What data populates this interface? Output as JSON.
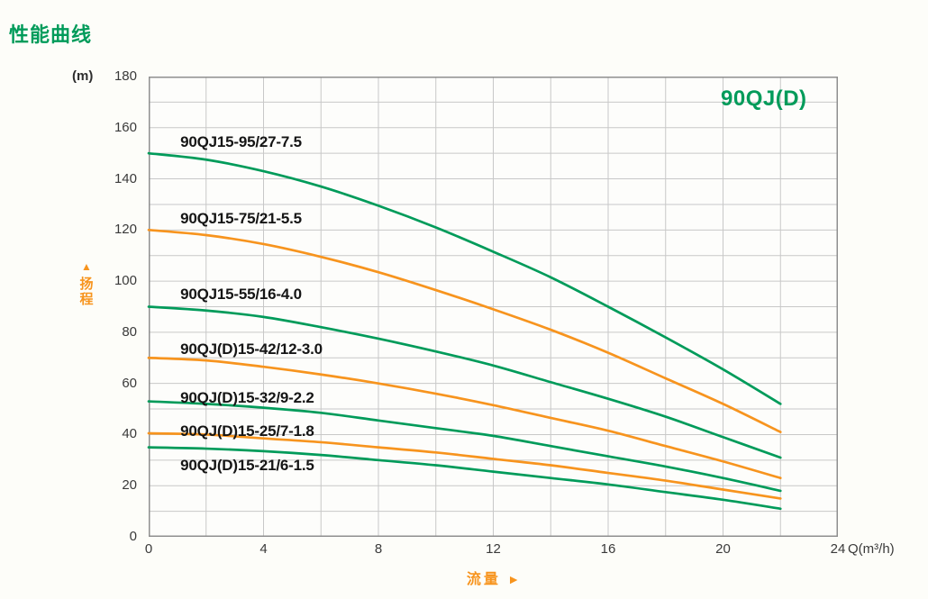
{
  "page": {
    "title": "性能曲线"
  },
  "colors": {
    "title_green": "#009B5A",
    "curve_green": "#009B5A",
    "curve_orange": "#F7941E",
    "grid": "#c8c8c8",
    "border": "#8f8f8f",
    "tick_text": "#3a3a3a"
  },
  "icons": {
    "up_triangle": "▲",
    "right_triangle": "►"
  },
  "chart_data": {
    "type": "line",
    "title": "性能曲线",
    "family_label": "90QJ(D)",
    "xlabel": "流量",
    "ylabel": "扬程",
    "x_unit": "Q(m³/h)",
    "y_unit": "(m)",
    "xlim": [
      0,
      24
    ],
    "ylim": [
      0,
      180
    ],
    "x_ticks": [
      0,
      4,
      8,
      12,
      16,
      20,
      24
    ],
    "y_ticks": [
      180,
      160,
      140,
      120,
      100,
      80,
      60,
      40,
      20,
      0
    ],
    "grid": {
      "x_minor_step": 2,
      "y_minor_step": 10,
      "on": true
    },
    "legend_position": "labels-on-curves",
    "x": [
      0,
      2,
      4,
      6,
      8,
      10,
      12,
      14,
      16,
      18,
      20,
      22
    ],
    "series": [
      {
        "name": "90QJ15-95/27-7.5",
        "color": "#009B5A",
        "values": [
          150,
          147.5,
          143,
          137,
          129.5,
          121,
          111.5,
          101.5,
          90,
          78,
          65.5,
          52
        ],
        "label_anchor": {
          "q": 1.1,
          "h": 154
        }
      },
      {
        "name": "90QJ15-75/21-5.5",
        "color": "#F7941E",
        "values": [
          120,
          118,
          114.5,
          109.5,
          103.5,
          96.5,
          89,
          81,
          72,
          62,
          52,
          41
        ],
        "label_anchor": {
          "q": 1.1,
          "h": 124
        }
      },
      {
        "name": "90QJ15-55/16-4.0",
        "color": "#009B5A",
        "values": [
          90,
          88.5,
          86,
          82,
          77.5,
          72.5,
          67,
          60.5,
          54,
          47,
          39,
          31
        ],
        "label_anchor": {
          "q": 1.1,
          "h": 94.5
        }
      },
      {
        "name": "90QJ(D)15-42/12-3.0",
        "color": "#F7941E",
        "values": [
          70,
          69,
          66.5,
          63.5,
          60,
          56,
          51.5,
          46.5,
          41.5,
          35.5,
          29.5,
          23
        ],
        "label_anchor": {
          "q": 1.1,
          "h": 73
        }
      },
      {
        "name": "90QJ(D)15-32/9-2.2",
        "color": "#009B5A",
        "values": [
          53,
          52,
          50.5,
          48.5,
          45.5,
          42.5,
          39.5,
          35.5,
          31.5,
          27.5,
          23,
          18
        ],
        "label_anchor": {
          "q": 1.1,
          "h": 54
        }
      },
      {
        "name": "90QJ(D)15-25/7-1.8",
        "color": "#F7941E",
        "values": [
          40.5,
          40,
          38.5,
          37,
          35,
          33,
          30.5,
          28,
          25,
          22,
          18.5,
          15
        ],
        "label_anchor": {
          "q": 1.1,
          "h": 41
        }
      },
      {
        "name": "90QJ(D)15-21/6-1.5",
        "color": "#009B5A",
        "values": [
          35,
          34.5,
          33.5,
          32,
          30,
          28,
          25.5,
          23,
          20.5,
          17.5,
          14.5,
          11
        ],
        "label_anchor": {
          "q": 1.1,
          "h": 27.5
        }
      }
    ]
  }
}
